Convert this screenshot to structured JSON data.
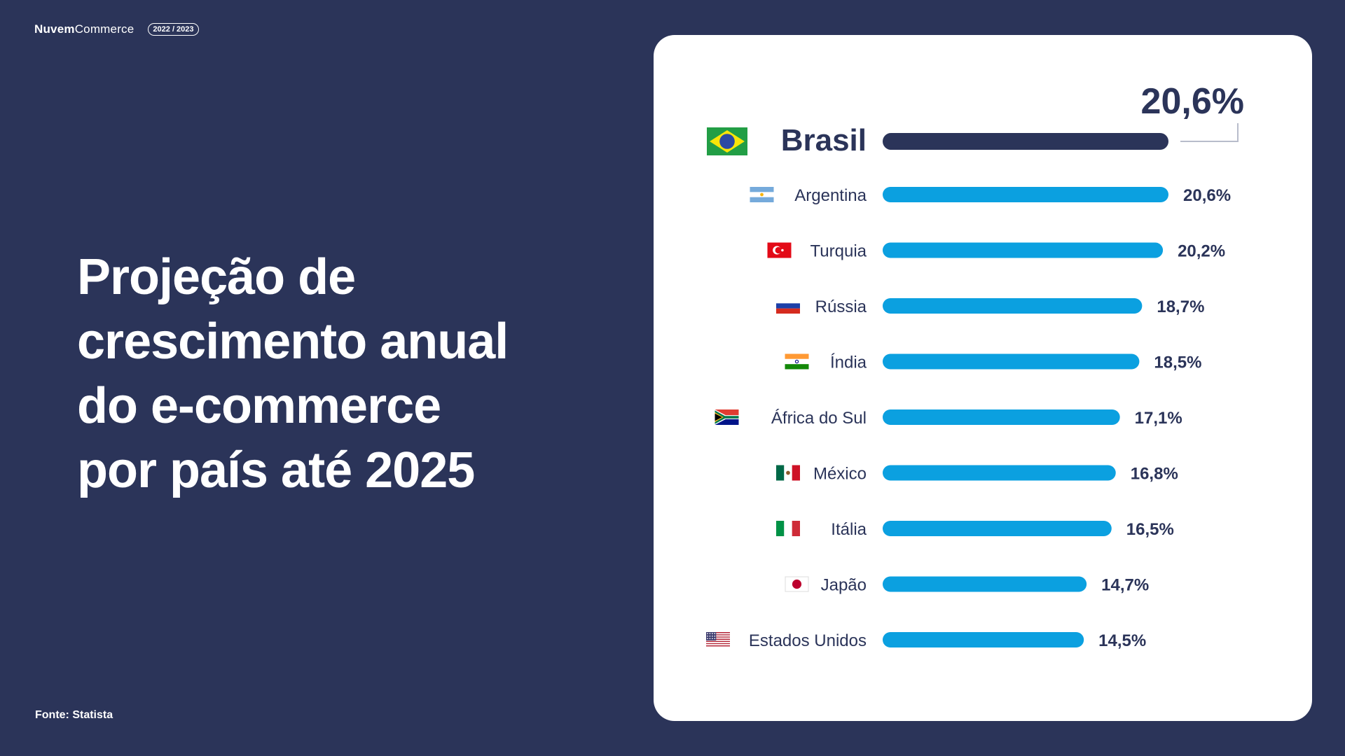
{
  "brand": {
    "name_bold": "Nuvem",
    "name_regular": "Commerce",
    "period": "2022 / 2023"
  },
  "title_lines": [
    "Projeção de",
    "crescimento anual",
    "do e-commerce",
    "por país até 2025"
  ],
  "source": "Fonte: Statista",
  "colors": {
    "background": "#2b3459",
    "card": "#ffffff",
    "highlight_bar": "#2b3459",
    "bar": "#0ba0e0",
    "text_dark": "#2b3459"
  },
  "chart_data": {
    "type": "bar",
    "orientation": "horizontal",
    "unit": "%",
    "categories": [
      "Brasil",
      "Argentina",
      "Turquia",
      "Rússia",
      "Índia",
      "África do Sul",
      "México",
      "Itália",
      "Japão",
      "Estados Unidos"
    ],
    "values": [
      20.6,
      20.6,
      20.2,
      18.7,
      18.5,
      17.1,
      16.8,
      16.5,
      14.7,
      14.5
    ],
    "value_labels": [
      "20,6%",
      "20,6%",
      "20,2%",
      "18,7%",
      "18,5%",
      "17,1%",
      "16,8%",
      "16,5%",
      "14,7%",
      "14,5%"
    ],
    "flags": [
      "flag-brazil",
      "flag-argentina",
      "flag-turkey",
      "flag-russia",
      "flag-india",
      "flag-south-africa",
      "flag-mexico",
      "flag-italy",
      "flag-japan",
      "flag-usa"
    ],
    "highlight": "Brasil",
    "xlim": [
      0,
      20.6
    ],
    "grid": false,
    "legend": "none"
  }
}
